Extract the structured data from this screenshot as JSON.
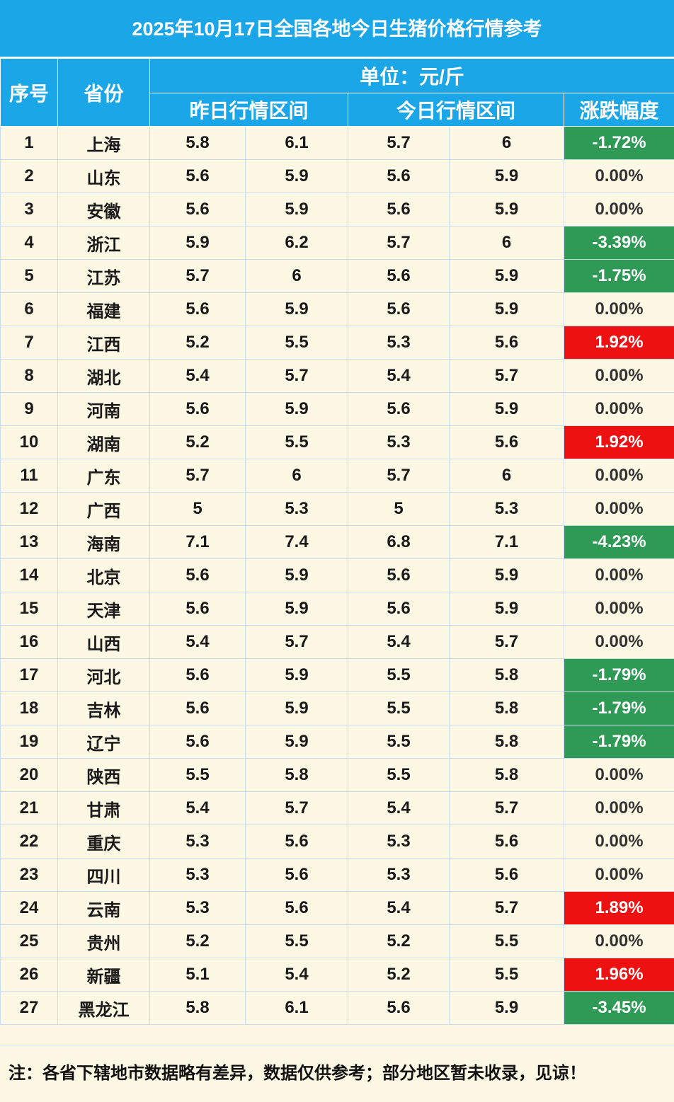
{
  "title": "2025年10月17日全国各地今日生猪价格行情参考",
  "headers": {
    "index": "序号",
    "province": "省份",
    "unit": "单位：元/斤",
    "yesterday": "昨日行情区间",
    "today": "今日行情区间",
    "change": "涨跌幅度"
  },
  "rows": [
    {
      "no": "1",
      "province": "上海",
      "y_low": "5.8",
      "y_high": "6.1",
      "t_low": "5.7",
      "t_high": "6",
      "change": "-1.72%",
      "trend": "down"
    },
    {
      "no": "2",
      "province": "山东",
      "y_low": "5.6",
      "y_high": "5.9",
      "t_low": "5.6",
      "t_high": "5.9",
      "change": "0.00%",
      "trend": "flat"
    },
    {
      "no": "3",
      "province": "安徽",
      "y_low": "5.6",
      "y_high": "5.9",
      "t_low": "5.6",
      "t_high": "5.9",
      "change": "0.00%",
      "trend": "flat"
    },
    {
      "no": "4",
      "province": "浙江",
      "y_low": "5.9",
      "y_high": "6.2",
      "t_low": "5.7",
      "t_high": "6",
      "change": "-3.39%",
      "trend": "down"
    },
    {
      "no": "5",
      "province": "江苏",
      "y_low": "5.7",
      "y_high": "6",
      "t_low": "5.6",
      "t_high": "5.9",
      "change": "-1.75%",
      "trend": "down"
    },
    {
      "no": "6",
      "province": "福建",
      "y_low": "5.6",
      "y_high": "5.9",
      "t_low": "5.6",
      "t_high": "5.9",
      "change": "0.00%",
      "trend": "flat"
    },
    {
      "no": "7",
      "province": "江西",
      "y_low": "5.2",
      "y_high": "5.5",
      "t_low": "5.3",
      "t_high": "5.6",
      "change": "1.92%",
      "trend": "up"
    },
    {
      "no": "8",
      "province": "湖北",
      "y_low": "5.4",
      "y_high": "5.7",
      "t_low": "5.4",
      "t_high": "5.7",
      "change": "0.00%",
      "trend": "flat"
    },
    {
      "no": "9",
      "province": "河南",
      "y_low": "5.6",
      "y_high": "5.9",
      "t_low": "5.6",
      "t_high": "5.9",
      "change": "0.00%",
      "trend": "flat"
    },
    {
      "no": "10",
      "province": "湖南",
      "y_low": "5.2",
      "y_high": "5.5",
      "t_low": "5.3",
      "t_high": "5.6",
      "change": "1.92%",
      "trend": "up"
    },
    {
      "no": "11",
      "province": "广东",
      "y_low": "5.7",
      "y_high": "6",
      "t_low": "5.7",
      "t_high": "6",
      "change": "0.00%",
      "trend": "flat"
    },
    {
      "no": "12",
      "province": "广西",
      "y_low": "5",
      "y_high": "5.3",
      "t_low": "5",
      "t_high": "5.3",
      "change": "0.00%",
      "trend": "flat"
    },
    {
      "no": "13",
      "province": "海南",
      "y_low": "7.1",
      "y_high": "7.4",
      "t_low": "6.8",
      "t_high": "7.1",
      "change": "-4.23%",
      "trend": "down"
    },
    {
      "no": "14",
      "province": "北京",
      "y_low": "5.6",
      "y_high": "5.9",
      "t_low": "5.6",
      "t_high": "5.9",
      "change": "0.00%",
      "trend": "flat"
    },
    {
      "no": "15",
      "province": "天津",
      "y_low": "5.6",
      "y_high": "5.9",
      "t_low": "5.6",
      "t_high": "5.9",
      "change": "0.00%",
      "trend": "flat"
    },
    {
      "no": "16",
      "province": "山西",
      "y_low": "5.4",
      "y_high": "5.7",
      "t_low": "5.4",
      "t_high": "5.7",
      "change": "0.00%",
      "trend": "flat"
    },
    {
      "no": "17",
      "province": "河北",
      "y_low": "5.6",
      "y_high": "5.9",
      "t_low": "5.5",
      "t_high": "5.8",
      "change": "-1.79%",
      "trend": "down"
    },
    {
      "no": "18",
      "province": "吉林",
      "y_low": "5.6",
      "y_high": "5.9",
      "t_low": "5.5",
      "t_high": "5.8",
      "change": "-1.79%",
      "trend": "down"
    },
    {
      "no": "19",
      "province": "辽宁",
      "y_low": "5.6",
      "y_high": "5.9",
      "t_low": "5.5",
      "t_high": "5.8",
      "change": "-1.79%",
      "trend": "down"
    },
    {
      "no": "20",
      "province": "陕西",
      "y_low": "5.5",
      "y_high": "5.8",
      "t_low": "5.5",
      "t_high": "5.8",
      "change": "0.00%",
      "trend": "flat"
    },
    {
      "no": "21",
      "province": "甘肃",
      "y_low": "5.4",
      "y_high": "5.7",
      "t_low": "5.4",
      "t_high": "5.7",
      "change": "0.00%",
      "trend": "flat"
    },
    {
      "no": "22",
      "province": "重庆",
      "y_low": "5.3",
      "y_high": "5.6",
      "t_low": "5.3",
      "t_high": "5.6",
      "change": "0.00%",
      "trend": "flat"
    },
    {
      "no": "23",
      "province": "四川",
      "y_low": "5.3",
      "y_high": "5.6",
      "t_low": "5.3",
      "t_high": "5.6",
      "change": "0.00%",
      "trend": "flat"
    },
    {
      "no": "24",
      "province": "云南",
      "y_low": "5.3",
      "y_high": "5.6",
      "t_low": "5.4",
      "t_high": "5.7",
      "change": "1.89%",
      "trend": "up"
    },
    {
      "no": "25",
      "province": "贵州",
      "y_low": "5.2",
      "y_high": "5.5",
      "t_low": "5.2",
      "t_high": "5.5",
      "change": "0.00%",
      "trend": "flat"
    },
    {
      "no": "26",
      "province": "新疆",
      "y_low": "5.1",
      "y_high": "5.4",
      "t_low": "5.2",
      "t_high": "5.5",
      "change": "1.96%",
      "trend": "up"
    },
    {
      "no": "27",
      "province": "黑龙江",
      "y_low": "5.8",
      "y_high": "6.1",
      "t_low": "5.6",
      "t_high": "5.9",
      "change": "-3.45%",
      "trend": "down"
    }
  ],
  "colors": {
    "header": "#1ba6e8",
    "up": "#ee1111",
    "down": "#2e9a56",
    "background": "#fdf8e4"
  },
  "note": "注：各省下辖地市数据略有差异，数据仅供参考；部分地区暂未收录，见谅！"
}
